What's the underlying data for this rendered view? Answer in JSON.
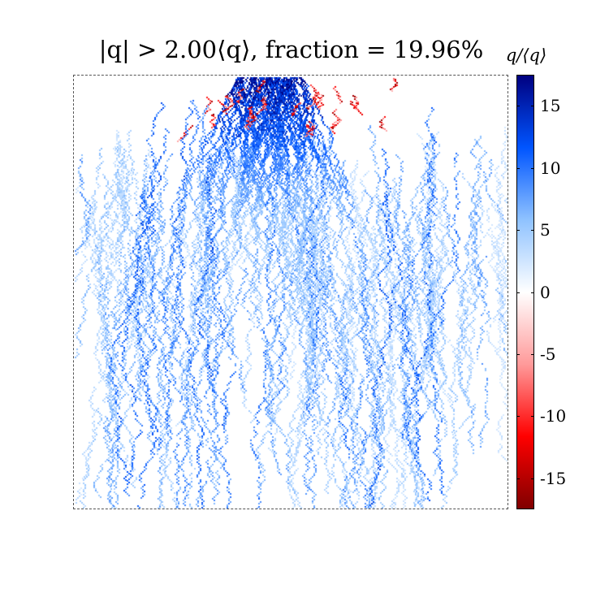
{
  "chart_data": {
    "type": "heatmap",
    "title": "|q| > 2.00⟨q⟩, fraction = 19.96%",
    "threshold_multiple": 2.0,
    "fraction_percent": 19.96,
    "colorbar": {
      "label": "q/⟨q⟩",
      "range": [
        -17.5,
        17.5
      ],
      "ticks": [
        15,
        10,
        5,
        0,
        -5,
        -10,
        -15
      ],
      "tick_labels": [
        "15",
        "10",
        "5",
        "0",
        "-5",
        "-10",
        "-15"
      ],
      "colormap": [
        "#000080",
        "#0055ff",
        "#8fc2ff",
        "#ffffff",
        "#ff9a9a",
        "#ff0000",
        "#800000"
      ]
    },
    "description_of_pattern": "Sparse pixels above threshold forming branching diagonal river-like paths; dense dark-red/blue cluster near top center, faint red channels spreading downward.",
    "grid": false
  }
}
